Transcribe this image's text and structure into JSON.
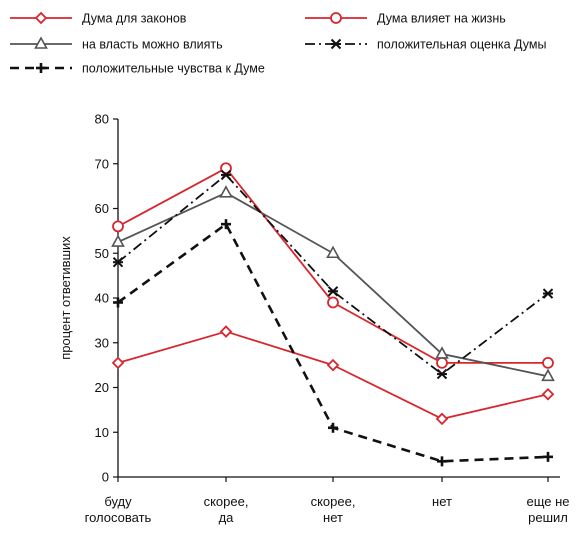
{
  "chart_data": {
    "type": "line",
    "title": "",
    "xlabel": "",
    "ylabel": "процент ответивших",
    "ylim": [
      0,
      80
    ],
    "yticks": [
      0,
      10,
      20,
      30,
      40,
      50,
      60,
      70,
      80
    ],
    "categories": [
      [
        "буду",
        "голосовать"
      ],
      [
        "скорее,",
        "да"
      ],
      [
        "скорее,",
        "нет"
      ],
      [
        "нет"
      ],
      [
        "еще не",
        "решил"
      ]
    ],
    "grid": false,
    "legend_position": "top",
    "series": [
      {
        "name": "Дума для законов",
        "color": "#d8262e",
        "marker": "diamond",
        "dash": "solid",
        "values": [
          25.5,
          32.5,
          25,
          13,
          18.5
        ]
      },
      {
        "name": "Дума влияет на жизнь",
        "color": "#d8262e",
        "marker": "circle",
        "dash": "solid",
        "values": [
          56,
          69,
          39,
          25.5,
          25.5
        ]
      },
      {
        "name": "на власть можно влиять",
        "color": "#555555",
        "marker": "triangle",
        "dash": "solid",
        "values": [
          52.5,
          63.5,
          50,
          27.5,
          22.5
        ]
      },
      {
        "name": "положительная оценка Думы",
        "color": "#111111",
        "marker": "asterisk",
        "dash": "dashdot",
        "values": [
          48,
          67.5,
          41.5,
          23,
          41
        ]
      },
      {
        "name": "положительные чувства к Думе",
        "color": "#111111",
        "marker": "plus",
        "dash": "dashed",
        "values": [
          39,
          56.5,
          11,
          3.5,
          4.5
        ]
      }
    ]
  }
}
